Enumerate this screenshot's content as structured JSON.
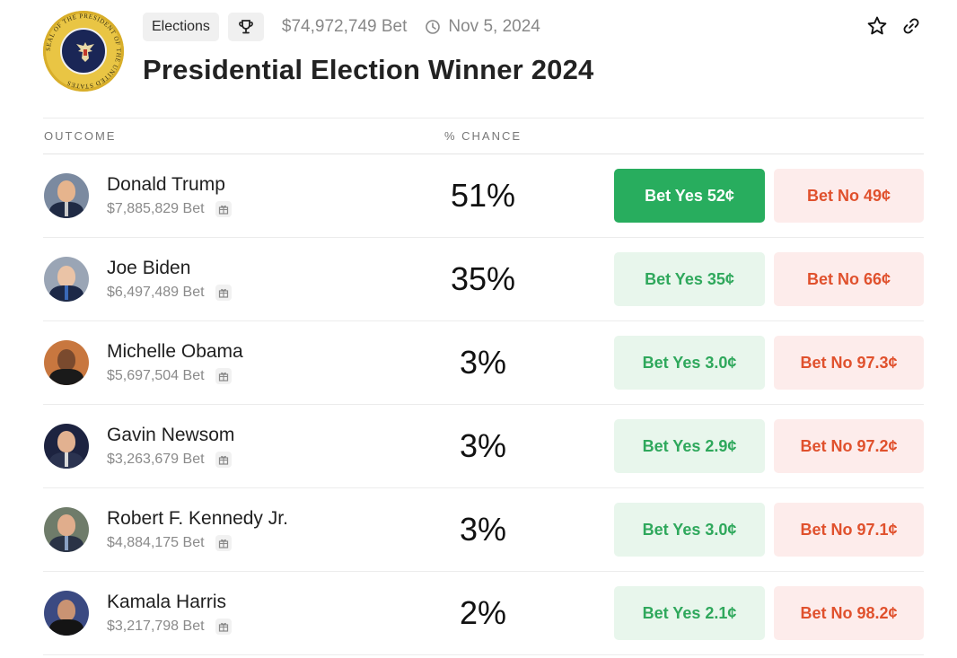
{
  "header": {
    "category": "Elections",
    "volume": "$74,972,749 Bet",
    "date": "Nov 5, 2024",
    "title": "Presidential Election Winner 2024",
    "seal_text": "SEAL OF THE PRESIDENT OF THE UNITED STATES"
  },
  "table": {
    "col_outcome": "OUTCOME",
    "col_chance": "% CHANCE"
  },
  "colors": {
    "yes_active_bg": "#28ad5e",
    "yes_bg": "#e8f6ec",
    "yes_text": "#2fa85c",
    "no_bg": "#fdeceb",
    "no_text": "#e0512d"
  },
  "outcomes": [
    {
      "name": "Donald Trump",
      "volume": "$7,885,829 Bet",
      "chance": "51%",
      "yes": "Bet Yes 52¢",
      "no": "Bet No 49¢"
    },
    {
      "name": "Joe Biden",
      "volume": "$6,497,489 Bet",
      "chance": "35%",
      "yes": "Bet Yes 35¢",
      "no": "Bet No 66¢"
    },
    {
      "name": "Michelle Obama",
      "volume": "$5,697,504 Bet",
      "chance": "3%",
      "yes": "Bet Yes 3.0¢",
      "no": "Bet No 97.3¢"
    },
    {
      "name": "Gavin Newsom",
      "volume": "$3,263,679 Bet",
      "chance": "3%",
      "yes": "Bet Yes 2.9¢",
      "no": "Bet No 97.2¢"
    },
    {
      "name": "Robert F. Kennedy Jr.",
      "volume": "$4,884,175 Bet",
      "chance": "3%",
      "yes": "Bet Yes 3.0¢",
      "no": "Bet No 97.1¢"
    },
    {
      "name": "Kamala Harris",
      "volume": "$3,217,798 Bet",
      "chance": "2%",
      "yes": "Bet Yes 2.1¢",
      "no": "Bet No 98.2¢"
    }
  ]
}
